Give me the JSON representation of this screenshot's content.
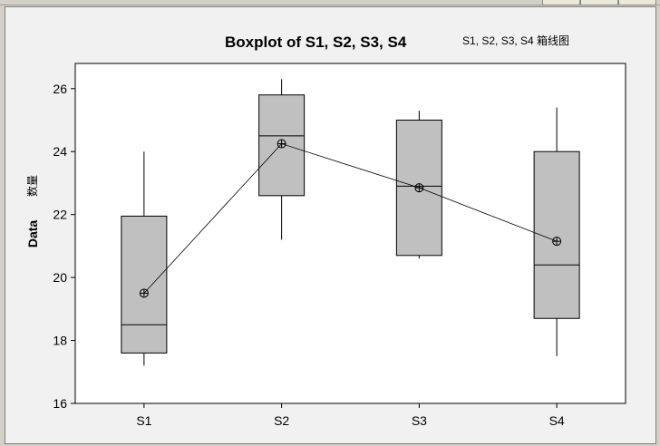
{
  "chart_data": {
    "type": "boxplot",
    "title": "Boxplot of S1, S2, S3, S4",
    "subtitle": "S1, S2, S3, S4 箱线图",
    "ylabel": "Data",
    "ylabel_secondary": "数量",
    "xlabel": "",
    "ylim": [
      16,
      26.8
    ],
    "yticks": [
      16,
      18,
      20,
      22,
      24,
      26
    ],
    "categories": [
      "S1",
      "S2",
      "S3",
      "S4"
    ],
    "boxes": [
      {
        "name": "S1",
        "min": 17.2,
        "q1": 17.6,
        "median": 18.5,
        "q3": 21.95,
        "max": 24.0,
        "mean": 19.5
      },
      {
        "name": "S2",
        "min": 21.2,
        "q1": 22.6,
        "median": 24.5,
        "q3": 25.8,
        "max": 26.3,
        "mean": 24.25
      },
      {
        "name": "S3",
        "min": 20.6,
        "q1": 20.7,
        "median": 22.9,
        "q3": 25.0,
        "max": 25.3,
        "mean": 22.85
      },
      {
        "name": "S4",
        "min": 17.5,
        "q1": 18.7,
        "median": 20.4,
        "q3": 24.0,
        "max": 25.4,
        "mean": 21.15
      }
    ],
    "mean_connect_line": true,
    "grid": false,
    "colors": {
      "box_fill": "#c0c0c0",
      "plot_bg": "#ffffff",
      "frame_bg": "#f1f1f1"
    }
  }
}
